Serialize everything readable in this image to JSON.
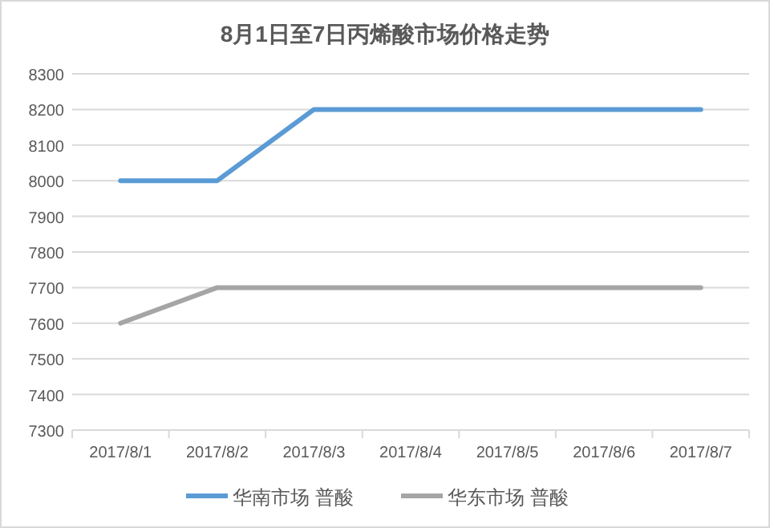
{
  "chart_data": {
    "type": "line",
    "title": "8月1日至7日丙烯酸市场价格走势",
    "categories": [
      "2017/8/1",
      "2017/8/2",
      "2017/8/3",
      "2017/8/4",
      "2017/8/5",
      "2017/8/6",
      "2017/8/7"
    ],
    "series": [
      {
        "name": "华南市场 普酸",
        "color": "#5b9bd5",
        "values": [
          8000,
          8000,
          8200,
          8200,
          8200,
          8200,
          8200
        ]
      },
      {
        "name": "华东市场 普酸",
        "color": "#a5a5a5",
        "values": [
          7600,
          7700,
          7700,
          7700,
          7700,
          7700,
          7700
        ]
      }
    ],
    "ylim": [
      7300,
      8300
    ],
    "yticks": [
      7300,
      7400,
      7500,
      7600,
      7700,
      7800,
      7900,
      8000,
      8100,
      8200,
      8300
    ],
    "grid": "y",
    "legend": "bottom",
    "line_style": "solid"
  }
}
